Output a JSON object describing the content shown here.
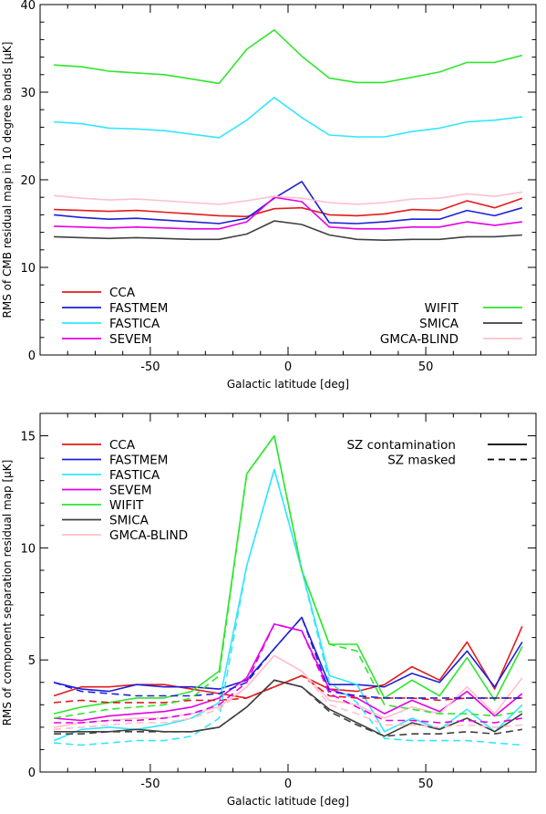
{
  "chart_data": [
    {
      "type": "line",
      "xlabel": "Galactic latitude [deg]",
      "ylabel": "RMS of CMB residual map in 10 degree bands [μK]",
      "xlim": [
        -90,
        90
      ],
      "ylim": [
        0,
        40
      ],
      "xticks": [
        -50,
        0,
        50
      ],
      "yticks": [
        0,
        10,
        20,
        30,
        40
      ],
      "grid": false,
      "legend_placement": "bottom-left and bottom-right",
      "x": [
        -85,
        -75,
        -65,
        -55,
        -45,
        -35,
        -25,
        -15,
        -5,
        5,
        15,
        25,
        35,
        45,
        55,
        65,
        75,
        85
      ],
      "series": [
        {
          "name": "CCA",
          "color": "#e41a1c",
          "dash": "solid",
          "legend_col": 0,
          "values": [
            16.6,
            16.5,
            16.4,
            16.5,
            16.3,
            16.1,
            15.9,
            15.8,
            16.7,
            16.8,
            16.0,
            15.9,
            16.1,
            16.6,
            16.5,
            17.6,
            16.8,
            17.9
          ]
        },
        {
          "name": "FASTMEM",
          "color": "#1f1fd6",
          "dash": "solid",
          "legend_col": 0,
          "values": [
            16.0,
            15.7,
            15.5,
            15.6,
            15.4,
            15.2,
            15.0,
            15.6,
            17.9,
            19.8,
            15.1,
            15.0,
            15.2,
            15.5,
            15.5,
            16.5,
            15.9,
            16.8
          ]
        },
        {
          "name": "FASTICA",
          "color": "#33e6ff",
          "dash": "solid",
          "legend_col": 0,
          "values": [
            26.6,
            26.4,
            25.9,
            25.8,
            25.6,
            25.2,
            24.8,
            26.8,
            29.4,
            27.1,
            25.1,
            24.9,
            24.9,
            25.5,
            25.9,
            26.6,
            26.8,
            27.2
          ]
        },
        {
          "name": "SEVEM",
          "color": "#e600e6",
          "dash": "solid",
          "legend_col": 0,
          "values": [
            14.7,
            14.6,
            14.5,
            14.6,
            14.5,
            14.4,
            14.4,
            15.2,
            18.0,
            17.5,
            14.6,
            14.4,
            14.4,
            14.6,
            14.6,
            15.2,
            14.8,
            15.2
          ]
        },
        {
          "name": "WIFIT",
          "color": "#2ee62e",
          "dash": "solid",
          "legend_col": 1,
          "values": [
            33.1,
            32.9,
            32.4,
            32.2,
            32.0,
            31.5,
            31.0,
            34.9,
            37.1,
            34.1,
            31.6,
            31.1,
            31.1,
            31.7,
            32.3,
            33.4,
            33.4,
            34.2
          ]
        },
        {
          "name": "SMICA",
          "color": "#404040",
          "dash": "solid",
          "legend_col": 1,
          "values": [
            13.5,
            13.4,
            13.3,
            13.4,
            13.3,
            13.2,
            13.2,
            13.8,
            15.3,
            14.9,
            13.7,
            13.2,
            13.1,
            13.2,
            13.2,
            13.5,
            13.5,
            13.7
          ]
        },
        {
          "name": "GMCA-BLIND",
          "color": "#ffc0cb",
          "dash": "solid",
          "legend_col": 1,
          "values": [
            18.2,
            17.9,
            17.7,
            17.8,
            17.6,
            17.4,
            17.2,
            17.6,
            18.1,
            17.9,
            17.4,
            17.2,
            17.4,
            17.8,
            17.9,
            18.4,
            18.1,
            18.6
          ]
        }
      ]
    },
    {
      "type": "line",
      "xlabel": "Galactic latitude [deg]",
      "ylabel": "RMS of component separation residual map [μK]",
      "xlim": [
        -90,
        90
      ],
      "ylim": [
        0,
        16
      ],
      "xticks": [
        -50,
        0,
        50
      ],
      "yticks": [
        0,
        5,
        10,
        15
      ],
      "grid": false,
      "legend_placement": "top-left and top-right",
      "style_legend": [
        {
          "label": "SZ contamination",
          "dash": "solid"
        },
        {
          "label": "SZ masked",
          "dash": "dashed"
        }
      ],
      "x": [
        -85,
        -75,
        -65,
        -55,
        -45,
        -35,
        -25,
        -15,
        -5,
        5,
        15,
        25,
        35,
        45,
        55,
        65,
        75,
        85
      ],
      "series": [
        {
          "name": "CCA",
          "color": "#e41a1c",
          "dash": "solid",
          "legend_col": 0,
          "values": [
            3.4,
            3.8,
            3.8,
            3.9,
            3.9,
            3.7,
            3.5,
            3.3,
            3.8,
            4.3,
            3.7,
            3.6,
            3.9,
            4.7,
            4.1,
            5.8,
            3.7,
            6.5
          ]
        },
        {
          "name": "FASTMEM",
          "color": "#1f1fd6",
          "dash": "solid",
          "legend_col": 0,
          "values": [
            4.0,
            3.7,
            3.6,
            3.9,
            3.8,
            3.8,
            3.7,
            4.1,
            5.5,
            6.9,
            3.9,
            3.9,
            3.8,
            4.4,
            4.0,
            5.4,
            3.8,
            5.8
          ]
        },
        {
          "name": "FASTICA",
          "color": "#33e6ff",
          "dash": "solid",
          "legend_col": 0,
          "values": [
            1.4,
            1.9,
            2.0,
            1.9,
            2.1,
            2.4,
            3.1,
            9.2,
            13.5,
            9.0,
            4.3,
            3.9,
            1.8,
            2.4,
            1.9,
            2.8,
            1.8,
            3.0
          ]
        },
        {
          "name": "SEVEM",
          "color": "#e600e6",
          "dash": "solid",
          "legend_col": 0,
          "values": [
            2.4,
            2.3,
            2.5,
            2.6,
            2.7,
            2.9,
            3.3,
            4.2,
            6.6,
            6.3,
            3.7,
            3.3,
            2.6,
            3.2,
            2.7,
            3.6,
            2.5,
            3.5
          ]
        },
        {
          "name": "WIFIT",
          "color": "#2ee62e",
          "dash": "solid",
          "legend_col": 0,
          "values": [
            2.6,
            2.9,
            3.1,
            3.3,
            3.3,
            3.6,
            4.5,
            13.3,
            15.0,
            9.0,
            5.7,
            5.7,
            3.3,
            4.1,
            3.4,
            5.1,
            3.2,
            5.6
          ]
        },
        {
          "name": "SMICA",
          "color": "#404040",
          "dash": "solid",
          "legend_col": 0,
          "values": [
            1.8,
            1.8,
            1.8,
            1.9,
            1.8,
            1.8,
            2.0,
            2.9,
            4.1,
            3.8,
            2.8,
            2.2,
            1.6,
            2.2,
            1.9,
            2.4,
            1.8,
            2.6
          ]
        },
        {
          "name": "GMCA-BLIND",
          "color": "#ffc0cb",
          "dash": "solid",
          "legend_col": 0,
          "values": [
            2.0,
            2.2,
            2.3,
            2.4,
            2.4,
            2.6,
            2.9,
            3.8,
            5.2,
            4.5,
            3.2,
            3.0,
            2.4,
            2.9,
            2.6,
            3.8,
            2.6,
            4.2
          ]
        },
        {
          "name": "",
          "color": "#e41a1c",
          "dash": "dashed",
          "values": [
            3.1,
            3.2,
            3.1,
            3.1,
            3.1,
            3.2,
            3.2,
            3.3,
            3.8,
            4.3,
            3.4,
            3.3,
            3.3,
            3.3,
            3.2,
            3.3,
            3.3,
            3.3
          ]
        },
        {
          "name": "",
          "color": "#1f1fd6",
          "dash": "dashed",
          "values": [
            4.0,
            3.6,
            3.5,
            3.4,
            3.4,
            3.4,
            3.5,
            4.0,
            5.5,
            6.9,
            3.6,
            3.4,
            3.3,
            3.3,
            3.3,
            3.3,
            3.3,
            3.3
          ]
        },
        {
          "name": "",
          "color": "#33e6ff",
          "dash": "dashed",
          "values": [
            1.3,
            1.2,
            1.3,
            1.4,
            1.4,
            1.6,
            2.4,
            9.2,
            13.5,
            9.0,
            4.0,
            3.1,
            1.5,
            1.4,
            1.4,
            1.4,
            1.3,
            1.2
          ]
        },
        {
          "name": "",
          "color": "#e600e6",
          "dash": "dashed",
          "values": [
            2.2,
            2.2,
            2.3,
            2.3,
            2.4,
            2.6,
            3.0,
            4.0,
            6.6,
            6.3,
            3.5,
            2.9,
            2.3,
            2.3,
            2.2,
            2.3,
            2.2,
            2.4
          ]
        },
        {
          "name": "",
          "color": "#2ee62e",
          "dash": "dashed",
          "values": [
            2.4,
            2.6,
            2.8,
            2.9,
            3.0,
            3.3,
            4.3,
            13.3,
            15.0,
            9.0,
            5.7,
            5.4,
            3.0,
            2.8,
            2.6,
            2.6,
            2.5,
            2.7
          ]
        },
        {
          "name": "",
          "color": "#404040",
          "dash": "dashed",
          "values": [
            1.7,
            1.7,
            1.8,
            1.8,
            1.8,
            1.8,
            2.0,
            2.9,
            4.1,
            3.8,
            2.7,
            2.1,
            1.6,
            1.7,
            1.7,
            1.8,
            1.7,
            1.9
          ]
        },
        {
          "name": "",
          "color": "#ffc0cb",
          "dash": "dashed",
          "values": [
            1.9,
            2.0,
            2.1,
            2.2,
            2.2,
            2.4,
            2.8,
            3.8,
            5.2,
            4.5,
            3.0,
            2.6,
            2.1,
            2.1,
            2.0,
            2.1,
            2.0,
            2.1
          ]
        }
      ]
    }
  ]
}
